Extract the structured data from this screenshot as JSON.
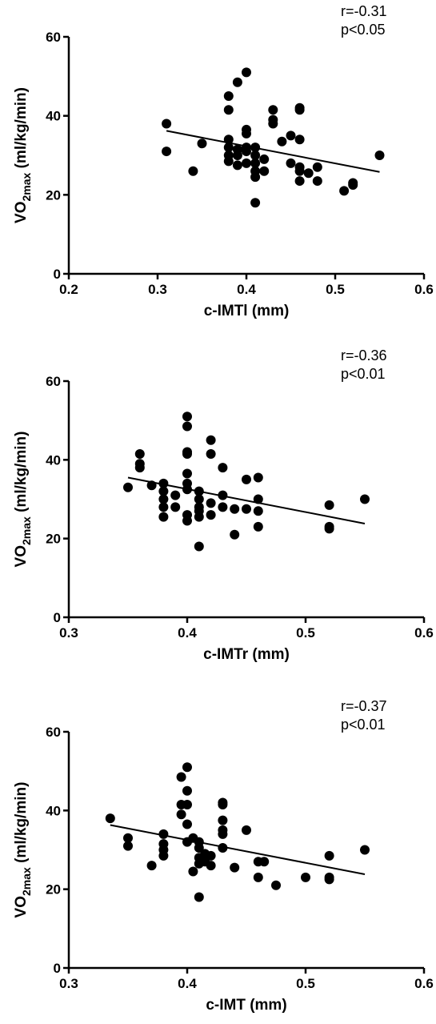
{
  "chart_data": [
    {
      "type": "scatter",
      "xlabel": "c-IMTl (mm)",
      "ylabel_main": "VO",
      "ylabel_sub": "2max",
      "ylabel_rest": " (ml/kg/min)",
      "xlim": [
        0.2,
        0.6
      ],
      "ylim": [
        0,
        60
      ],
      "xticks": [
        "0.2",
        "0.3",
        "0.4",
        "0.5",
        "0.6"
      ],
      "yticks": [
        "0",
        "20",
        "40",
        "60"
      ],
      "grid": false,
      "annotation": [
        "r=-0.31",
        "p<0.05"
      ],
      "trendline": {
        "x": [
          0.31,
          0.55
        ],
        "y": [
          36.2,
          25.8
        ]
      },
      "points": [
        [
          0.31,
          38
        ],
        [
          0.31,
          31
        ],
        [
          0.34,
          26
        ],
        [
          0.35,
          33
        ],
        [
          0.38,
          45
        ],
        [
          0.38,
          41.5
        ],
        [
          0.38,
          34
        ],
        [
          0.38,
          32
        ],
        [
          0.38,
          30
        ],
        [
          0.38,
          28.5
        ],
        [
          0.39,
          48.5
        ],
        [
          0.39,
          31.5
        ],
        [
          0.39,
          30
        ],
        [
          0.39,
          27.5
        ],
        [
          0.4,
          51
        ],
        [
          0.4,
          36.5
        ],
        [
          0.4,
          35.5
        ],
        [
          0.4,
          32
        ],
        [
          0.4,
          31
        ],
        [
          0.4,
          28
        ],
        [
          0.41,
          32
        ],
        [
          0.41,
          30
        ],
        [
          0.41,
          28
        ],
        [
          0.41,
          26
        ],
        [
          0.41,
          24.5
        ],
        [
          0.41,
          18
        ],
        [
          0.42,
          29
        ],
        [
          0.42,
          26
        ],
        [
          0.43,
          41.5
        ],
        [
          0.43,
          39
        ],
        [
          0.43,
          38
        ],
        [
          0.44,
          33.5
        ],
        [
          0.45,
          35
        ],
        [
          0.45,
          28
        ],
        [
          0.46,
          42
        ],
        [
          0.46,
          41.5
        ],
        [
          0.46,
          34
        ],
        [
          0.46,
          27
        ],
        [
          0.46,
          26
        ],
        [
          0.46,
          23.5
        ],
        [
          0.47,
          25.5
        ],
        [
          0.48,
          27
        ],
        [
          0.48,
          23.5
        ],
        [
          0.51,
          21
        ],
        [
          0.52,
          23
        ],
        [
          0.52,
          22.5
        ],
        [
          0.55,
          30
        ]
      ]
    },
    {
      "type": "scatter",
      "xlabel": "c-IMTr (mm)",
      "ylabel_main": "VO",
      "ylabel_sub": "2max",
      "ylabel_rest": " (ml/kg/min)",
      "xlim": [
        0.3,
        0.6
      ],
      "ylim": [
        0,
        60
      ],
      "xticks": [
        "0.3",
        "0.4",
        "0.5",
        "0.6"
      ],
      "yticks": [
        "0",
        "20",
        "40",
        "60"
      ],
      "grid": false,
      "annotation": [
        "r=-0.36",
        "p<0.01"
      ],
      "trendline": {
        "x": [
          0.35,
          0.55
        ],
        "y": [
          35.5,
          23.8
        ]
      },
      "points": [
        [
          0.35,
          33
        ],
        [
          0.36,
          41.5
        ],
        [
          0.36,
          39
        ],
        [
          0.36,
          38
        ],
        [
          0.37,
          33.5
        ],
        [
          0.38,
          34
        ],
        [
          0.38,
          32
        ],
        [
          0.38,
          30
        ],
        [
          0.38,
          28
        ],
        [
          0.38,
          25.5
        ],
        [
          0.39,
          31
        ],
        [
          0.39,
          28
        ],
        [
          0.4,
          51
        ],
        [
          0.4,
          48.5
        ],
        [
          0.4,
          42
        ],
        [
          0.4,
          41.5
        ],
        [
          0.4,
          36.5
        ],
        [
          0.4,
          34
        ],
        [
          0.4,
          32.5
        ],
        [
          0.4,
          26
        ],
        [
          0.4,
          24.5
        ],
        [
          0.41,
          32
        ],
        [
          0.41,
          30
        ],
        [
          0.41,
          28
        ],
        [
          0.41,
          27
        ],
        [
          0.41,
          25.5
        ],
        [
          0.41,
          18
        ],
        [
          0.42,
          45
        ],
        [
          0.42,
          41.5
        ],
        [
          0.42,
          29
        ],
        [
          0.42,
          26
        ],
        [
          0.43,
          38
        ],
        [
          0.43,
          31
        ],
        [
          0.43,
          28
        ],
        [
          0.44,
          27.5
        ],
        [
          0.44,
          21
        ],
        [
          0.45,
          35
        ],
        [
          0.45,
          27.5
        ],
        [
          0.46,
          35.5
        ],
        [
          0.46,
          30
        ],
        [
          0.46,
          27
        ],
        [
          0.46,
          23
        ],
        [
          0.52,
          28.5
        ],
        [
          0.52,
          23
        ],
        [
          0.52,
          22.5
        ],
        [
          0.55,
          30
        ]
      ]
    },
    {
      "type": "scatter",
      "xlabel": "c-IMT (mm)",
      "ylabel_main": "VO",
      "ylabel_sub": "2max",
      "ylabel_rest": " (ml/kg/min)",
      "xlim": [
        0.3,
        0.6
      ],
      "ylim": [
        0,
        60
      ],
      "xticks": [
        "0.3",
        "0.4",
        "0.5",
        "0.6"
      ],
      "yticks": [
        "0",
        "20",
        "40",
        "60"
      ],
      "grid": false,
      "annotation": [
        "r=-0.37",
        "p<0.01"
      ],
      "trendline": {
        "x": [
          0.335,
          0.55
        ],
        "y": [
          36.3,
          23.8
        ]
      },
      "points": [
        [
          0.335,
          38
        ],
        [
          0.35,
          33
        ],
        [
          0.35,
          31
        ],
        [
          0.37,
          26
        ],
        [
          0.38,
          34
        ],
        [
          0.38,
          31.5
        ],
        [
          0.38,
          30
        ],
        [
          0.38,
          28.5
        ],
        [
          0.395,
          48.5
        ],
        [
          0.395,
          41.5
        ],
        [
          0.395,
          39
        ],
        [
          0.4,
          51
        ],
        [
          0.4,
          45
        ],
        [
          0.4,
          41.5
        ],
        [
          0.4,
          36.5
        ],
        [
          0.4,
          32
        ],
        [
          0.405,
          33
        ],
        [
          0.405,
          24.5
        ],
        [
          0.41,
          32
        ],
        [
          0.41,
          30.5
        ],
        [
          0.41,
          28
        ],
        [
          0.41,
          26.5
        ],
        [
          0.41,
          18
        ],
        [
          0.415,
          29
        ],
        [
          0.415,
          27
        ],
        [
          0.42,
          28.5
        ],
        [
          0.42,
          26
        ],
        [
          0.43,
          42
        ],
        [
          0.43,
          41.5
        ],
        [
          0.43,
          37.5
        ],
        [
          0.43,
          35
        ],
        [
          0.43,
          34
        ],
        [
          0.43,
          30.5
        ],
        [
          0.44,
          25.5
        ],
        [
          0.45,
          35
        ],
        [
          0.46,
          27
        ],
        [
          0.46,
          23
        ],
        [
          0.465,
          27
        ],
        [
          0.475,
          21
        ],
        [
          0.5,
          23
        ],
        [
          0.52,
          28.5
        ],
        [
          0.52,
          23
        ],
        [
          0.52,
          22.5
        ],
        [
          0.55,
          30
        ]
      ]
    }
  ]
}
